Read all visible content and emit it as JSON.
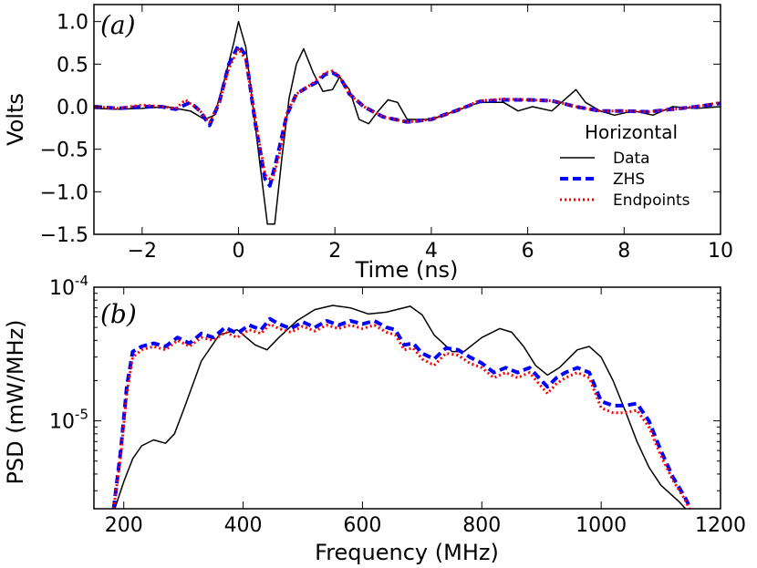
{
  "chart_data": [
    {
      "type": "line",
      "panel_label": "(a)",
      "xlabel": "Time (ns)",
      "ylabel": "Volts",
      "xlim": [
        -3,
        10
      ],
      "ylim": [
        -1.5,
        1.2
      ],
      "xticks": [
        -2,
        0,
        2,
        4,
        6,
        8,
        10
      ],
      "xtick_labels": [
        "−2",
        "0",
        "2",
        "4",
        "6",
        "8",
        "10"
      ],
      "yticks": [
        -1.5,
        -1.0,
        -0.5,
        0.0,
        0.5,
        1.0
      ],
      "ytick_labels": [
        "−1.5",
        "−1.0",
        "−0.5",
        "0.0",
        "0.5",
        "1.0"
      ],
      "legend": {
        "title": "Horizontal",
        "placement": "lower-right",
        "entries": [
          "Data",
          "ZHS",
          "Endpoints"
        ]
      },
      "series": [
        {
          "name": "Data",
          "color": "#000000",
          "style": "solid",
          "x": [
            -3,
            -2.5,
            -2,
            -1.5,
            -1,
            -0.7,
            -0.5,
            -0.3,
            -0.1,
            0,
            0.15,
            0.3,
            0.45,
            0.6,
            0.75,
            0.9,
            1.05,
            1.2,
            1.35,
            1.55,
            1.75,
            1.95,
            2.1,
            2.3,
            2.5,
            2.7,
            2.9,
            3.1,
            3.3,
            3.5,
            3.7,
            4,
            4.5,
            5,
            5.5,
            5.8,
            6.1,
            6.5,
            6.8,
            7,
            7.2,
            7.5,
            7.8,
            8.2,
            8.6,
            9,
            9.5,
            10
          ],
          "y": [
            -0.02,
            -0.03,
            -0.02,
            0.0,
            -0.05,
            -0.15,
            -0.1,
            0.3,
            0.75,
            1.0,
            0.7,
            0.0,
            -0.7,
            -1.38,
            -1.38,
            -0.6,
            0.1,
            0.5,
            0.68,
            0.4,
            0.18,
            0.2,
            0.35,
            0.2,
            -0.15,
            -0.2,
            -0.05,
            0.08,
            0.05,
            -0.15,
            -0.15,
            -0.15,
            -0.05,
            0.05,
            0.05,
            -0.05,
            0.0,
            -0.05,
            0.1,
            0.2,
            0.05,
            -0.05,
            -0.1,
            -0.05,
            -0.1,
            0.0,
            -0.02,
            0.0
          ]
        },
        {
          "name": "ZHS",
          "color": "#0000ff",
          "style": "dashed",
          "x": [
            -3,
            -2.5,
            -2,
            -1.6,
            -1.3,
            -1.0,
            -0.8,
            -0.6,
            -0.4,
            -0.2,
            0,
            0.15,
            0.35,
            0.55,
            0.65,
            0.8,
            1.0,
            1.2,
            1.4,
            1.6,
            1.8,
            1.95,
            2.1,
            2.3,
            2.6,
            3.0,
            3.5,
            4.0,
            4.5,
            5.0,
            5.5,
            6.0,
            6.5,
            7.0,
            7.5,
            8.0,
            8.5,
            9.0,
            9.5,
            10
          ],
          "y": [
            0.0,
            -0.02,
            0.0,
            0.0,
            -0.03,
            0.05,
            -0.05,
            -0.22,
            0.05,
            0.5,
            0.72,
            0.6,
            -0.2,
            -0.85,
            -0.93,
            -0.6,
            -0.1,
            0.15,
            0.22,
            0.28,
            0.38,
            0.4,
            0.35,
            0.15,
            0.0,
            -0.12,
            -0.18,
            -0.15,
            -0.05,
            0.06,
            0.08,
            0.08,
            0.07,
            0.0,
            -0.05,
            -0.05,
            -0.06,
            -0.03,
            0.0,
            0.04
          ]
        },
        {
          "name": "Endpoints",
          "color": "#ff0000",
          "style": "dotted",
          "x": [
            -3,
            -2.5,
            -2,
            -1.6,
            -1.3,
            -1.1,
            -0.8,
            -0.6,
            -0.4,
            -0.2,
            0,
            0.15,
            0.35,
            0.55,
            0.7,
            0.85,
            1.0,
            1.2,
            1.4,
            1.6,
            1.8,
            1.95,
            2.1,
            2.3,
            2.6,
            3.0,
            3.5,
            4.0,
            4.5,
            5.0,
            5.5,
            6.0,
            6.5,
            7.0,
            7.5,
            8.0,
            8.5,
            9.0,
            9.5,
            10
          ],
          "y": [
            0.0,
            -0.02,
            0.02,
            0.0,
            -0.02,
            0.08,
            -0.05,
            -0.18,
            0.05,
            0.45,
            0.68,
            0.55,
            -0.15,
            -0.8,
            -0.87,
            -0.55,
            -0.08,
            0.15,
            0.22,
            0.3,
            0.4,
            0.42,
            0.35,
            0.15,
            0.0,
            -0.12,
            -0.18,
            -0.15,
            -0.05,
            0.07,
            0.09,
            0.08,
            0.07,
            0.0,
            -0.05,
            -0.05,
            -0.06,
            -0.03,
            0.0,
            0.05
          ]
        }
      ]
    },
    {
      "type": "line",
      "panel_label": "(b)",
      "xlabel": "Frequency (MHz)",
      "ylabel": "PSD (mW/MHz)",
      "yscale": "log",
      "xlim": [
        150,
        1200
      ],
      "ylim": [
        2.2e-06,
        0.0001
      ],
      "xticks": [
        200,
        400,
        600,
        800,
        1000,
        1200
      ],
      "xtick_labels": [
        "200",
        "400",
        "600",
        "800",
        "1000",
        "1200"
      ],
      "yticks": [
        1e-05,
        0.0001
      ],
      "ytick_labels": [
        {
          "base": "10",
          "exp": "-5"
        },
        {
          "base": "10",
          "exp": "-4"
        }
      ],
      "series": [
        {
          "name": "Data",
          "color": "#000000",
          "style": "solid",
          "x": [
            185,
            200,
            215,
            230,
            250,
            270,
            285,
            300,
            330,
            360,
            390,
            420,
            440,
            460,
            490,
            520,
            550,
            580,
            610,
            640,
            680,
            700,
            720,
            750,
            770,
            800,
            830,
            850,
            870,
            890,
            910,
            930,
            960,
            980,
            1000,
            1020,
            1040,
            1060,
            1080,
            1100,
            1130,
            1150
          ],
          "y": [
            2.2e-06,
            3.5e-06,
            5.2e-06,
            6.5e-06,
            7.2e-06,
            6.8e-06,
            8e-06,
            1.2e-05,
            2.8e-05,
            4.4e-05,
            4.8e-05,
            3.7e-05,
            3.4e-05,
            4.2e-05,
            5.6e-05,
            6.8e-05,
            7.3e-05,
            7e-05,
            6.3e-05,
            6.5e-05,
            7.2e-05,
            6.2e-05,
            4.4e-05,
            3.3e-05,
            3.3e-05,
            4.2e-05,
            4.9e-05,
            4.6e-05,
            3.6e-05,
            2.6e-05,
            2.2e-05,
            2.5e-05,
            3.4e-05,
            3.6e-05,
            3e-05,
            2e-05,
            1.2e-05,
            7e-06,
            4.5e-06,
            3.3e-06,
            2.5e-06,
            2e-06
          ]
        },
        {
          "name": "ZHS",
          "color": "#0000ff",
          "style": "dashed",
          "x": [
            183,
            195,
            205,
            215,
            230,
            250,
            270,
            290,
            310,
            330,
            350,
            370,
            390,
            410,
            430,
            445,
            460,
            480,
            500,
            520,
            540,
            560,
            580,
            600,
            620,
            640,
            655,
            670,
            685,
            700,
            720,
            740,
            760,
            780,
            800,
            820,
            840,
            860,
            880,
            900,
            910,
            925,
            940,
            960,
            980,
            1000,
            1020,
            1040,
            1060,
            1080,
            1100,
            1120,
            1140,
            1150
          ],
          "y": [
            2.2e-06,
            6e-06,
            1.8e-05,
            3.3e-05,
            3.6e-05,
            3.8e-05,
            3.6e-05,
            4.2e-05,
            3.8e-05,
            4.5e-05,
            4.2e-05,
            5e-05,
            4.5e-05,
            5.2e-05,
            4.8e-05,
            5.8e-05,
            5.3e-05,
            4.9e-05,
            5.5e-05,
            5e-05,
            5.6e-05,
            5.2e-05,
            5.6e-05,
            5.3e-05,
            5.6e-05,
            5e-05,
            4.8e-05,
            3.7e-05,
            3.8e-05,
            3.2e-05,
            2.9e-05,
            3.5e-05,
            3.4e-05,
            3e-05,
            2.7e-05,
            2.3e-05,
            2.5e-05,
            2.3e-05,
            2.5e-05,
            2e-05,
            1.8e-05,
            2.1e-05,
            2.3e-05,
            2.5e-05,
            2.3e-05,
            1.4e-05,
            1.3e-05,
            1.3e-05,
            1.35e-05,
            1e-05,
            6e-06,
            3.8e-06,
            2.7e-06,
            2.2e-06
          ]
        },
        {
          "name": "Endpoints",
          "color": "#ff0000",
          "style": "dotted",
          "x": [
            183,
            195,
            205,
            215,
            230,
            250,
            270,
            290,
            310,
            330,
            350,
            370,
            390,
            410,
            430,
            445,
            460,
            480,
            500,
            520,
            540,
            560,
            580,
            600,
            620,
            640,
            655,
            670,
            685,
            700,
            720,
            740,
            760,
            780,
            800,
            820,
            840,
            860,
            880,
            900,
            910,
            925,
            940,
            960,
            980,
            1000,
            1020,
            1040,
            1060,
            1080,
            1100,
            1120,
            1140,
            1150
          ],
          "y": [
            2.2e-06,
            5.5e-06,
            1.6e-05,
            3e-05,
            3.4e-05,
            3.6e-05,
            3.4e-05,
            4e-05,
            3.6e-05,
            4.2e-05,
            4e-05,
            4.6e-05,
            4.2e-05,
            4.8e-05,
            4.5e-05,
            5.3e-05,
            4.9e-05,
            4.6e-05,
            5.1e-05,
            4.7e-05,
            5.2e-05,
            4.9e-05,
            5.2e-05,
            4.9e-05,
            5.2e-05,
            4.6e-05,
            4.4e-05,
            3.4e-05,
            3.5e-05,
            2.9e-05,
            2.6e-05,
            3.2e-05,
            3.1e-05,
            2.7e-05,
            2.5e-05,
            2.1e-05,
            2.3e-05,
            2.1e-05,
            2.3e-05,
            1.8e-05,
            1.6e-05,
            1.9e-05,
            2.1e-05,
            2.3e-05,
            2.1e-05,
            1.25e-05,
            1.15e-05,
            1.15e-05,
            1.2e-05,
            9e-06,
            5.5e-06,
            3.6e-06,
            2.6e-06,
            2.1e-06
          ]
        }
      ]
    }
  ]
}
